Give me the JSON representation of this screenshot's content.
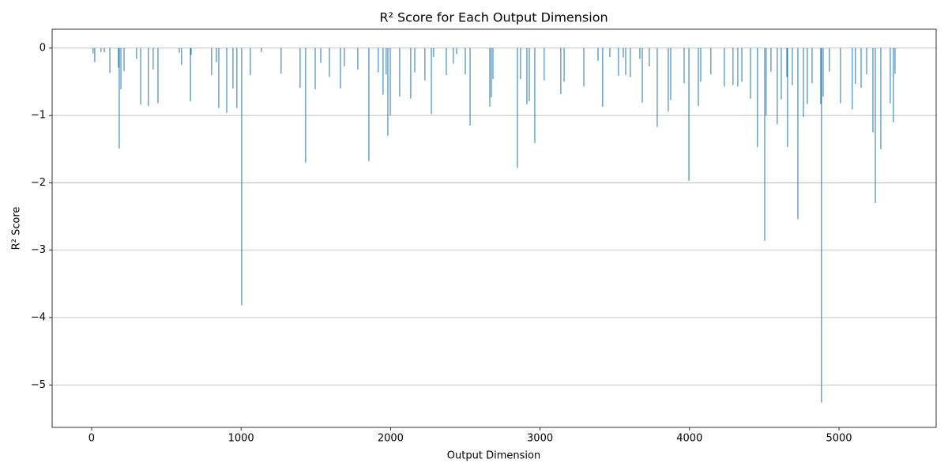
{
  "chart_data": {
    "type": "bar",
    "title": "R² Score for Each Output Dimension",
    "x_label": "Output Dimension",
    "y_label": "R² Score",
    "color": "#1f77b4",
    "grid": "y",
    "xlim": [
      -264,
      5650
    ],
    "ylim": [
      -5.63,
      0.28
    ],
    "xticks": [
      0,
      1000,
      2000,
      3000,
      4000,
      5000
    ],
    "yticks": [
      0,
      {
        "value": -1,
        "label": "−1"
      },
      {
        "value": -2,
        "label": "−2"
      },
      {
        "value": -3,
        "label": "−3"
      },
      {
        "value": -4,
        "label": "−4"
      },
      {
        "value": -5,
        "label": "−5"
      }
    ],
    "x": [
      10,
      21,
      63,
      85,
      122,
      180,
      185,
      196,
      217,
      301,
      328,
      380,
      412,
      444,
      587,
      602,
      661,
      666,
      803,
      835,
      851,
      904,
      946,
      972,
      1004,
      1062,
      1136,
      1268,
      1395,
      1432,
      1496,
      1533,
      1591,
      1665,
      1691,
      1781,
      1855,
      1918,
      1950,
      1971,
      1982,
      1998,
      2061,
      2135,
      2162,
      2230,
      2273,
      2288,
      2373,
      2420,
      2442,
      2500,
      2532,
      2664,
      2674,
      2685,
      2849,
      2870,
      2912,
      2928,
      2965,
      3028,
      3139,
      3161,
      3293,
      3388,
      3419,
      3467,
      3525,
      3557,
      3573,
      3604,
      3668,
      3684,
      3731,
      3784,
      3858,
      3874,
      3964,
      3996,
      4059,
      4075,
      4143,
      4233,
      4291,
      4323,
      4350,
      4408,
      4455,
      4503,
      4513,
      4545,
      4587,
      4614,
      4651,
      4656,
      4688,
      4725,
      4762,
      4788,
      4820,
      4878,
      4883,
      4894,
      4936,
      5010,
      5089,
      5110,
      5148,
      5185,
      5227,
      5243,
      5280,
      5343,
      5364,
      5375
    ],
    "values": [
      -0.08,
      -0.21,
      -0.06,
      -0.06,
      -0.37,
      -0.29,
      -1.49,
      -0.61,
      -0.34,
      -0.16,
      -0.84,
      -0.86,
      -0.32,
      -0.82,
      -0.07,
      -0.25,
      -0.79,
      -0.1,
      -0.4,
      -0.21,
      -0.89,
      -0.96,
      -0.6,
      -0.89,
      -3.82,
      -0.4,
      -0.06,
      -0.38,
      -0.59,
      -1.7,
      -0.61,
      -0.22,
      -0.43,
      -0.6,
      -0.27,
      -0.32,
      -1.68,
      -0.36,
      -0.69,
      -0.39,
      -1.3,
      -1.0,
      -0.72,
      -0.75,
      -0.36,
      -0.48,
      -0.98,
      -0.13,
      -0.4,
      -0.23,
      -0.09,
      -0.39,
      -1.15,
      -0.87,
      -0.73,
      -0.46,
      -1.78,
      -0.46,
      -0.83,
      -0.79,
      -1.41,
      -0.48,
      -0.68,
      -0.5,
      -0.57,
      -0.19,
      -0.87,
      -0.13,
      -0.41,
      -0.14,
      -0.4,
      -0.43,
      -0.16,
      -0.81,
      -0.27,
      -1.17,
      -0.94,
      -0.77,
      -0.52,
      -1.97,
      -0.86,
      -0.5,
      -0.39,
      -0.57,
      -0.55,
      -0.57,
      -0.5,
      -0.75,
      -1.47,
      -2.86,
      -1.0,
      -0.35,
      -1.13,
      -0.76,
      -0.43,
      -1.47,
      -0.55,
      -2.54,
      -1.02,
      -0.83,
      -0.52,
      -0.83,
      -5.26,
      -0.72,
      -0.35,
      -0.82,
      -0.91,
      -0.53,
      -0.59,
      -0.39,
      -1.25,
      -2.3,
      -1.5,
      -0.82,
      -1.1,
      -0.38
    ]
  }
}
